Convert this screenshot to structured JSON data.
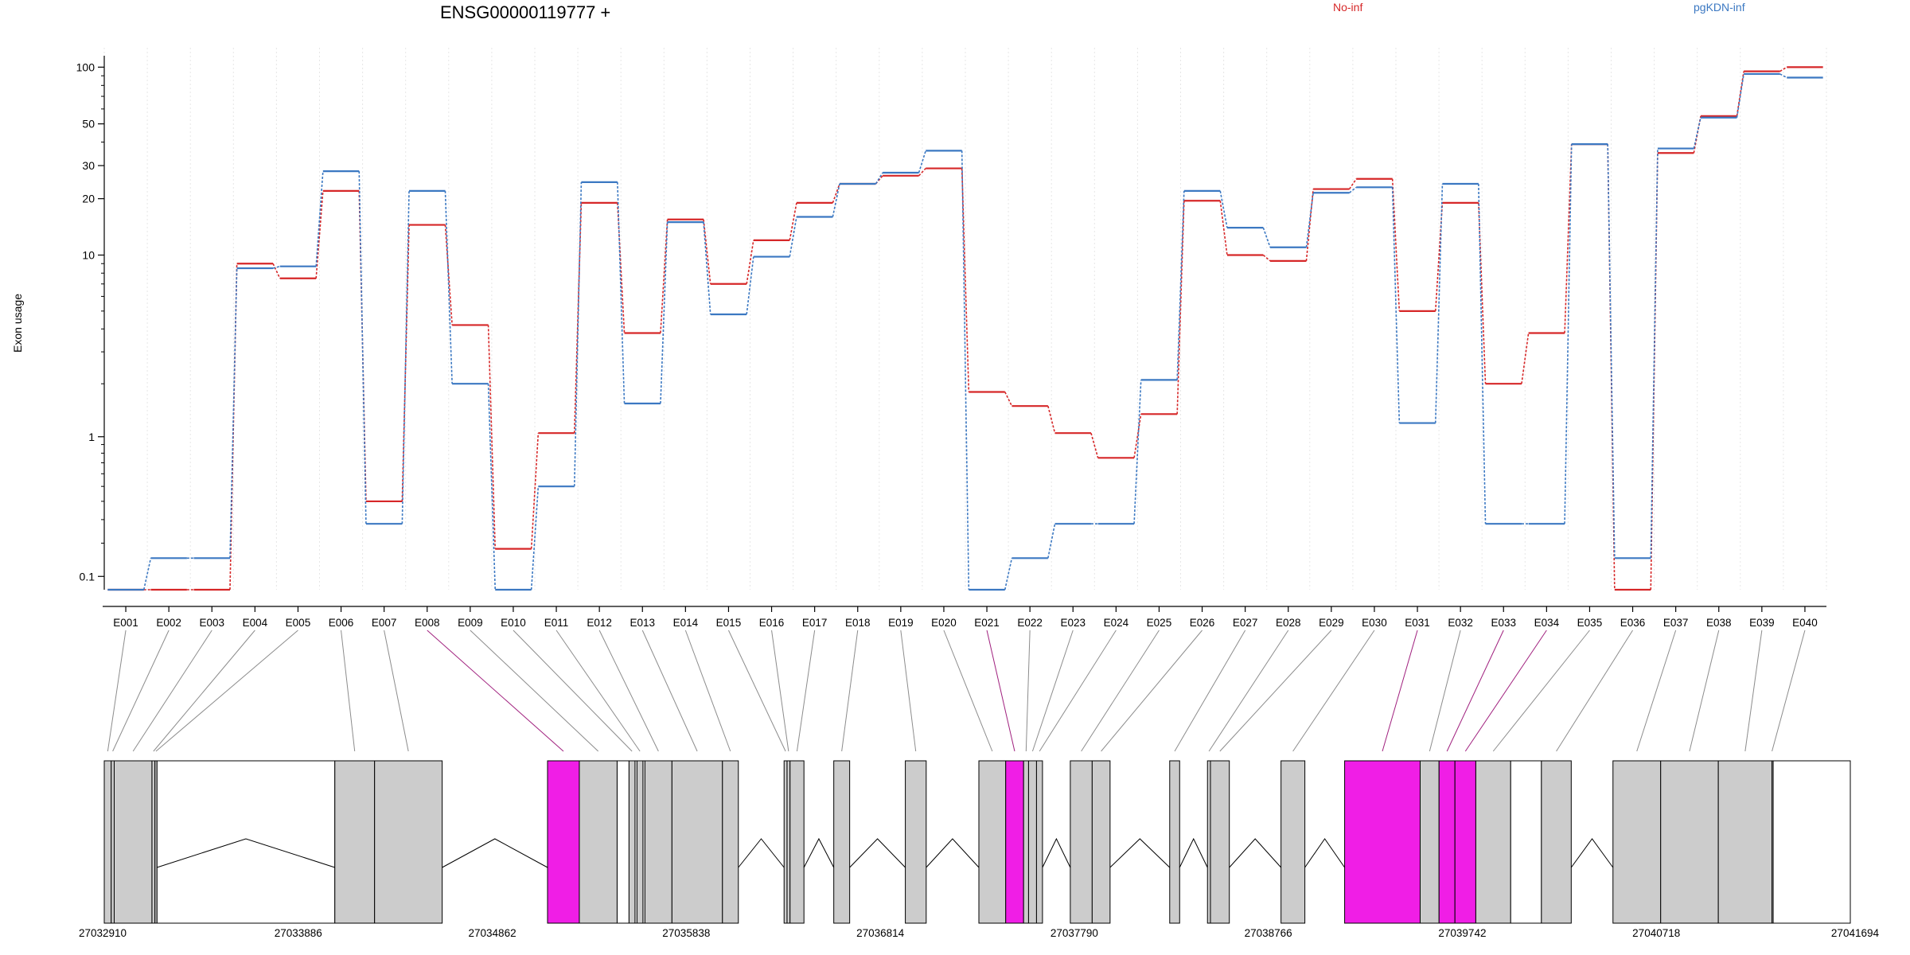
{
  "chart_data": {
    "type": "line",
    "title": "ENSG00000119777 +",
    "ylabel": "Exon usage",
    "xlabel": "",
    "y_scale": "custom-log (log10(value + 0.1))",
    "ylim": [
      0.07,
      115
    ],
    "yticks": [
      0.1,
      1,
      10,
      20,
      30,
      50,
      100
    ],
    "grid": "vertical dotted lines at exon boundaries",
    "legend": [
      {
        "name": "No-inf",
        "color": "#d62728",
        "position": "top-center-right"
      },
      {
        "name": "pgKDN-inf",
        "color": "#3b78c2",
        "position": "top-right"
      }
    ],
    "categories": [
      "E001",
      "E002",
      "E003",
      "E004",
      "E005",
      "E006",
      "E007",
      "E008",
      "E009",
      "E010",
      "E011",
      "E012",
      "E013",
      "E014",
      "E015",
      "E016",
      "E017",
      "E018",
      "E019",
      "E020",
      "E021",
      "E022",
      "E023",
      "E024",
      "E025",
      "E026",
      "E027",
      "E028",
      "E029",
      "E030",
      "E031",
      "E032",
      "E033",
      "E034",
      "E035",
      "E036",
      "E037",
      "E038",
      "E039",
      "E040"
    ],
    "series": [
      {
        "name": "No-inf",
        "color": "#d62728",
        "values": [
          0.07,
          0.07,
          0.07,
          9,
          7.5,
          22,
          0.4,
          14.5,
          4.2,
          0.18,
          1.05,
          19,
          3.8,
          15.5,
          7,
          12,
          19,
          24,
          26.5,
          29,
          1.8,
          1.5,
          1.05,
          0.75,
          1.35,
          19.5,
          10,
          9.3,
          22.5,
          25.5,
          5,
          19,
          2,
          3.8,
          39,
          0.07,
          35,
          55,
          95,
          100
        ]
      },
      {
        "name": "pgKDN-inf",
        "color": "#3b78c2",
        "values": [
          0.07,
          0.15,
          0.15,
          8.5,
          8.7,
          28,
          0.28,
          22,
          2,
          0.07,
          0.5,
          24.5,
          1.55,
          15,
          4.8,
          9.8,
          16,
          24,
          27.5,
          36,
          0.07,
          0.15,
          0.28,
          0.28,
          2.1,
          22,
          14,
          11,
          21.5,
          23,
          1.2,
          24,
          0.28,
          0.28,
          39,
          0.15,
          37,
          54,
          92,
          88
        ]
      }
    ],
    "highlighted_exons": [
      "E008",
      "E021",
      "E031",
      "E033",
      "E034"
    ],
    "highlight_color": "#f01ee6",
    "exon_fill_color": "#cccccc",
    "gene_model": {
      "coordinate_labels": [
        "27032910",
        "27033886",
        "27034862",
        "27035838",
        "27036814",
        "27037790",
        "27038766",
        "27039742",
        "27040718",
        "27041694"
      ]
    }
  }
}
